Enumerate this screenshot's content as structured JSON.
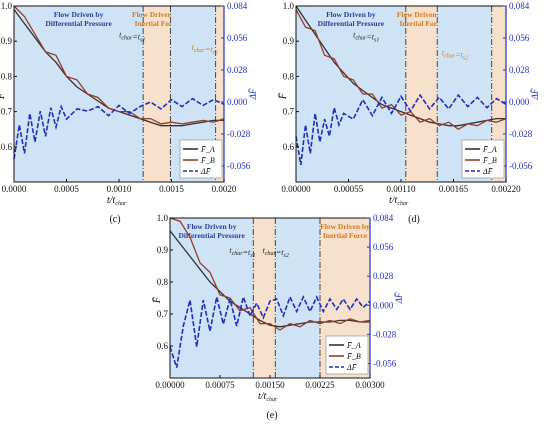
{
  "chart_data": [
    {
      "panel": "(c)",
      "type": "line",
      "xlabel": "t/t_char",
      "ylabel": "F̄",
      "y2label": "ΔF̄",
      "xlim": [
        0,
        0.002
      ],
      "ylim": [
        0.5,
        1.0
      ],
      "y2lim": [
        -0.07,
        0.084
      ],
      "xticks": [
        "0.0000",
        "0.0005",
        "0.0010",
        "0.0015",
        "0.0020"
      ],
      "xtick_values": [
        0,
        0.0005,
        0.001,
        0.0015,
        0.002
      ],
      "yticks": [
        "0.6",
        "0.7",
        "0.8",
        "0.9",
        "1.0"
      ],
      "ytick_values": [
        0.6,
        0.7,
        0.8,
        0.9,
        1.0
      ],
      "y2ticks": [
        "0.084",
        "0.056",
        "0.028",
        "0.000",
        "-0.028",
        "-0.056"
      ],
      "y2tick_values": [
        0.084,
        0.056,
        0.028,
        0.0,
        -0.028,
        -0.056
      ],
      "regions": [
        {
          "kind": "blue",
          "x0": 0,
          "x1": 0.00123,
          "label": [
            "Flow Driven by",
            "Differential Pressure"
          ]
        },
        {
          "kind": "orange",
          "x0": 0.00123,
          "x1": 0.00149,
          "label": [
            "Flow Driven by",
            "Inertial Force"
          ]
        },
        {
          "kind": "blue",
          "x0": 0.00149,
          "x1": 0.00192
        },
        {
          "kind": "orange",
          "x0": 0.00192,
          "x1": 0.002
        }
      ],
      "vlines": [
        0.00123,
        0.00149,
        0.00192
      ],
      "annotations": [
        {
          "text": "t_char=t_s1",
          "style": "dark",
          "x": 0.00123,
          "y": 0.91
        },
        {
          "text": "t_char=t_s2",
          "style": "orange",
          "x": 0.00192,
          "y": 0.875
        }
      ],
      "series": [
        {
          "name": "F̄_A",
          "color": "#333333",
          "axis": "left",
          "x": [
            0,
            0.0001,
            0.0002,
            0.0003,
            0.0004,
            0.0005,
            0.0006,
            0.0007,
            0.0008,
            0.0009,
            0.001,
            0.0011,
            0.0012,
            0.0013,
            0.0014,
            0.0015,
            0.0016,
            0.0017,
            0.0018,
            0.0019,
            0.002
          ],
          "y": [
            0.99,
            0.95,
            0.91,
            0.87,
            0.84,
            0.8,
            0.77,
            0.75,
            0.73,
            0.71,
            0.7,
            0.69,
            0.68,
            0.67,
            0.66,
            0.66,
            0.66,
            0.665,
            0.67,
            0.675,
            0.675
          ]
        },
        {
          "name": "F̄_B",
          "color": "#9a3a22",
          "axis": "left",
          "x": [
            0,
            0.0001,
            0.0002,
            0.0003,
            0.0004,
            0.0005,
            0.0006,
            0.0007,
            0.0008,
            0.0009,
            0.001,
            0.0011,
            0.0012,
            0.0013,
            0.0014,
            0.0015,
            0.0016,
            0.0017,
            0.0018,
            0.0019,
            0.002
          ],
          "y": [
            1.0,
            0.97,
            0.92,
            0.87,
            0.86,
            0.8,
            0.79,
            0.75,
            0.74,
            0.71,
            0.7,
            0.7,
            0.68,
            0.68,
            0.665,
            0.67,
            0.665,
            0.67,
            0.675,
            0.67,
            0.68
          ]
        },
        {
          "name": "ΔF̄",
          "color": "#1f2fbf",
          "axis": "right",
          "dash": true,
          "x": [
            0,
            5e-05,
            0.0001,
            0.00015,
            0.0002,
            0.00025,
            0.0003,
            0.00035,
            0.0004,
            0.00045,
            0.0005,
            0.0006,
            0.0007,
            0.0008,
            0.0009,
            0.001,
            0.0011,
            0.0012,
            0.0013,
            0.0014,
            0.0015,
            0.0016,
            0.0017,
            0.0018,
            0.0019,
            0.002
          ],
          "y": [
            -0.05,
            -0.02,
            -0.045,
            -0.01,
            -0.035,
            -0.008,
            -0.03,
            -0.005,
            -0.022,
            -0.004,
            -0.015,
            -0.006,
            -0.008,
            -0.004,
            -0.012,
            -0.003,
            -0.01,
            -0.004,
            0.0,
            -0.006,
            0.002,
            -0.004,
            0.003,
            -0.003,
            0.002,
            -0.002
          ]
        }
      ],
      "legend": [
        "F̄_A",
        "F̄_B",
        "ΔF̄"
      ],
      "legend_position": "bottom-right"
    },
    {
      "panel": "(d)",
      "type": "line",
      "xlabel": "t/t_char",
      "ylabel": "F̄",
      "y2label": "ΔF̄",
      "xlim": [
        0,
        0.0022
      ],
      "ylim": [
        0.5,
        1.0
      ],
      "y2lim": [
        -0.07,
        0.084
      ],
      "xticks": [
        "0.00000",
        "0.00055",
        "0.00110",
        "0.00165",
        "0.00220"
      ],
      "xtick_values": [
        0,
        0.00055,
        0.0011,
        0.00165,
        0.0022
      ],
      "yticks": [
        "0.6",
        "0.7",
        "0.8",
        "0.9",
        "1.0"
      ],
      "ytick_values": [
        0.6,
        0.7,
        0.8,
        0.9,
        1.0
      ],
      "y2ticks": [
        "0.084",
        "0.056",
        "0.028",
        "0.000",
        "-0.028",
        "-0.056"
      ],
      "y2tick_values": [
        0.084,
        0.056,
        0.028,
        0.0,
        -0.028,
        -0.056
      ],
      "regions": [
        {
          "kind": "blue",
          "x0": 0,
          "x1": 0.00115,
          "label": [
            "Flow Driven by",
            "Differential Pressure"
          ]
        },
        {
          "kind": "orange",
          "x0": 0.00115,
          "x1": 0.00148,
          "label": [
            "Flow Driven by",
            "Inertial Force"
          ]
        },
        {
          "kind": "blue",
          "x0": 0.00148,
          "x1": 0.00205
        },
        {
          "kind": "orange",
          "x0": 0.00205,
          "x1": 0.0022
        }
      ],
      "vlines": [
        0.00115,
        0.00148,
        0.00205
      ],
      "annotations": [
        {
          "text": "t_char=t_s1",
          "style": "dark",
          "x": 0.00085,
          "y": 0.91
        },
        {
          "text": "t_char=t_s2",
          "style": "orange",
          "x": 0.00178,
          "y": 0.86
        }
      ],
      "series": [
        {
          "name": "F̄_A",
          "color": "#333333",
          "axis": "left",
          "x": [
            0,
            0.0001,
            0.0002,
            0.0003,
            0.0004,
            0.0005,
            0.0006,
            0.0007,
            0.0008,
            0.0009,
            0.001,
            0.0011,
            0.0012,
            0.0013,
            0.0014,
            0.0015,
            0.0016,
            0.0017,
            0.0018,
            0.0019,
            0.002,
            0.0021,
            0.0022
          ],
          "y": [
            1.0,
            0.96,
            0.92,
            0.88,
            0.84,
            0.81,
            0.78,
            0.76,
            0.74,
            0.72,
            0.71,
            0.7,
            0.69,
            0.68,
            0.67,
            0.665,
            0.66,
            0.66,
            0.665,
            0.67,
            0.675,
            0.68,
            0.68
          ]
        },
        {
          "name": "F̄_B",
          "color": "#9a3a22",
          "axis": "left",
          "x": [
            0,
            0.0001,
            0.0002,
            0.0003,
            0.0004,
            0.0005,
            0.0006,
            0.0007,
            0.0008,
            0.0009,
            0.001,
            0.0011,
            0.0012,
            0.0013,
            0.0014,
            0.0015,
            0.0016,
            0.0017,
            0.0018,
            0.0019,
            0.002,
            0.0021,
            0.0022
          ],
          "y": [
            0.99,
            0.94,
            0.93,
            0.86,
            0.85,
            0.8,
            0.79,
            0.75,
            0.75,
            0.71,
            0.72,
            0.69,
            0.7,
            0.67,
            0.68,
            0.66,
            0.67,
            0.65,
            0.665,
            0.66,
            0.675,
            0.67,
            0.68
          ]
        },
        {
          "name": "ΔF̄",
          "color": "#1f2fbf",
          "axis": "right",
          "dash": true,
          "x": [
            0,
            5e-05,
            0.0001,
            0.00015,
            0.0002,
            0.00025,
            0.0003,
            0.00035,
            0.0004,
            0.00045,
            0.0005,
            0.0006,
            0.0007,
            0.0008,
            0.0009,
            0.001,
            0.0011,
            0.0012,
            0.0013,
            0.0014,
            0.0015,
            0.0016,
            0.0017,
            0.0018,
            0.0019,
            0.002,
            0.0021,
            0.0022
          ],
          "y": [
            -0.03,
            -0.055,
            -0.02,
            -0.045,
            -0.01,
            -0.035,
            -0.015,
            -0.03,
            -0.005,
            -0.02,
            -0.01,
            -0.015,
            0.002,
            -0.012,
            0.004,
            -0.01,
            0.005,
            -0.008,
            0.006,
            -0.006,
            0.004,
            -0.006,
            0.006,
            -0.004,
            0.004,
            -0.005,
            0.003,
            -0.002
          ]
        }
      ],
      "legend": [
        "F̄_A",
        "F̄_B",
        "ΔF̄"
      ],
      "legend_position": "bottom-right"
    },
    {
      "panel": "(e)",
      "type": "line",
      "xlabel": "t/t_char",
      "ylabel": "F̄",
      "y2label": "ΔF̄",
      "xlim": [
        0,
        0.003
      ],
      "ylim": [
        0.5,
        1.0
      ],
      "y2lim": [
        -0.07,
        0.084
      ],
      "xticks": [
        "0.00000",
        "0.00075",
        "0.00150",
        "0.00225",
        "0.00300"
      ],
      "xtick_values": [
        0,
        0.00075,
        0.0015,
        0.00225,
        0.003
      ],
      "yticks": [
        "0.6",
        "0.7",
        "0.8",
        "0.9",
        "1.0"
      ],
      "ytick_values": [
        0.6,
        0.7,
        0.8,
        0.9,
        1.0
      ],
      "y2ticks": [
        "0.084",
        "0.056",
        "0.028",
        "0.000",
        "-0.028",
        "-0.056"
      ],
      "y2tick_values": [
        0.084,
        0.056,
        0.028,
        0.0,
        -0.028,
        -0.056
      ],
      "regions": [
        {
          "kind": "blue",
          "x0": 0,
          "x1": 0.00125,
          "label": [
            "Flow Driven by",
            "Differential Pressure"
          ]
        },
        {
          "kind": "orange",
          "x0": 0.00125,
          "x1": 0.00158
        },
        {
          "kind": "blue",
          "x0": 0.00158,
          "x1": 0.00225
        },
        {
          "kind": "orange",
          "x0": 0.00225,
          "x1": 0.003,
          "label": [
            "Flow Driven by",
            "Inertial Force"
          ]
        }
      ],
      "vlines": [
        0.00125,
        0.00158,
        0.00225
      ],
      "annotations": [
        {
          "text": "t_char=t_s1",
          "style": "dark",
          "x": 0.00125,
          "y": 0.89
        },
        {
          "text": "t_char=t_s2",
          "style": "dark",
          "x": 0.00175,
          "y": 0.89
        }
      ],
      "series": [
        {
          "name": "F̄_A",
          "color": "#333333",
          "axis": "left",
          "x": [
            0,
            0.00015,
            0.0003,
            0.00045,
            0.0006,
            0.00075,
            0.0009,
            0.00105,
            0.0012,
            0.00135,
            0.0015,
            0.00165,
            0.0018,
            0.00195,
            0.0021,
            0.00225,
            0.0024,
            0.00255,
            0.0027,
            0.00285,
            0.003
          ],
          "y": [
            0.96,
            0.92,
            0.88,
            0.84,
            0.8,
            0.77,
            0.74,
            0.72,
            0.7,
            0.68,
            0.665,
            0.66,
            0.665,
            0.67,
            0.675,
            0.675,
            0.675,
            0.68,
            0.68,
            0.675,
            0.675
          ]
        },
        {
          "name": "F̄_B",
          "color": "#9a3a22",
          "axis": "left",
          "x": [
            0,
            0.00015,
            0.0003,
            0.00045,
            0.0006,
            0.00075,
            0.0009,
            0.00105,
            0.0012,
            0.00135,
            0.0015,
            0.00165,
            0.0018,
            0.00195,
            0.0021,
            0.00225,
            0.0024,
            0.00255,
            0.0027,
            0.00285,
            0.003
          ],
          "y": [
            1.0,
            0.99,
            0.94,
            0.86,
            0.83,
            0.76,
            0.75,
            0.71,
            0.72,
            0.67,
            0.67,
            0.65,
            0.67,
            0.66,
            0.68,
            0.67,
            0.68,
            0.67,
            0.685,
            0.675,
            0.68
          ]
        },
        {
          "name": "ΔF̄",
          "color": "#1f2fbf",
          "axis": "right",
          "dash": true,
          "x": [
            0,
            0.0001,
            0.0002,
            0.0003,
            0.0004,
            0.0005,
            0.0006,
            0.0007,
            0.0008,
            0.0009,
            0.001,
            0.0011,
            0.0012,
            0.0013,
            0.0014,
            0.0015,
            0.0016,
            0.0017,
            0.0018,
            0.0019,
            0.002,
            0.0021,
            0.0022,
            0.0023,
            0.0024,
            0.0025,
            0.0026,
            0.0027,
            0.0028,
            0.0029,
            0.003
          ],
          "y": [
            -0.04,
            -0.06,
            -0.02,
            0.005,
            -0.04,
            0.005,
            -0.025,
            0.008,
            -0.018,
            0.006,
            -0.02,
            0.008,
            -0.01,
            0.002,
            -0.012,
            0.004,
            0.006,
            -0.01,
            0.008,
            -0.006,
            0.008,
            -0.006,
            0.008,
            -0.006,
            0.006,
            -0.004,
            0.006,
            -0.004,
            0.006,
            -0.002,
            0.004
          ]
        }
      ],
      "legend": [
        "F̄_A",
        "F̄_B",
        "ΔF̄"
      ],
      "legend_position": "bottom-right"
    }
  ],
  "colors": {
    "region_blue": "#cfe3f7",
    "region_orange": "#f7e0cc",
    "vline": "#444444",
    "right_axis": "#1f2fbf"
  }
}
